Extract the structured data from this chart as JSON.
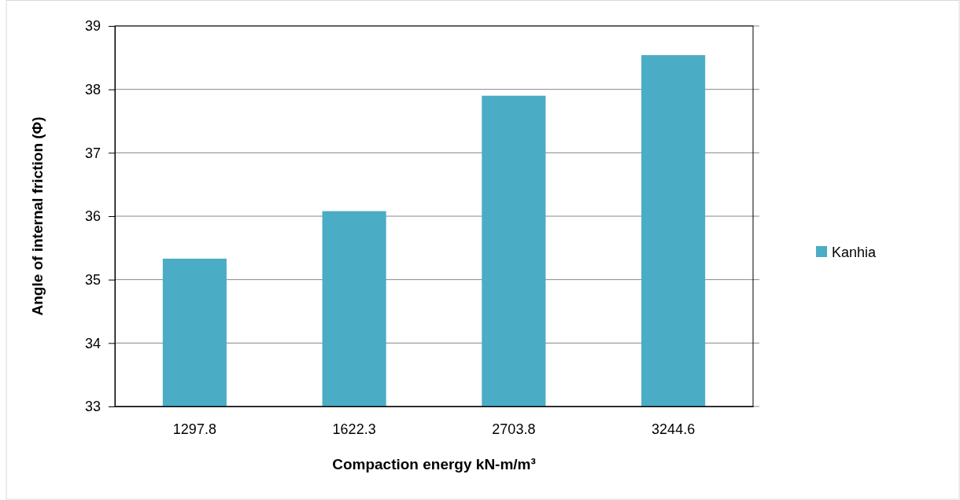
{
  "chart_data": {
    "type": "bar",
    "xlabel": "Compaction energy kN-m/m³",
    "ylabel": "Angle of internal friction (Φ)",
    "categories": [
      "1297.8",
      "1622.3",
      "2703.8",
      "3244.6"
    ],
    "series": [
      {
        "name": "Kanhia",
        "color": "#4bacc6",
        "values": [
          35.33,
          36.08,
          37.9,
          38.54
        ]
      }
    ],
    "ylim": [
      33,
      39
    ],
    "yticks": [
      33,
      34,
      35,
      36,
      37,
      38,
      39
    ],
    "grid": "y",
    "legend": "right"
  }
}
